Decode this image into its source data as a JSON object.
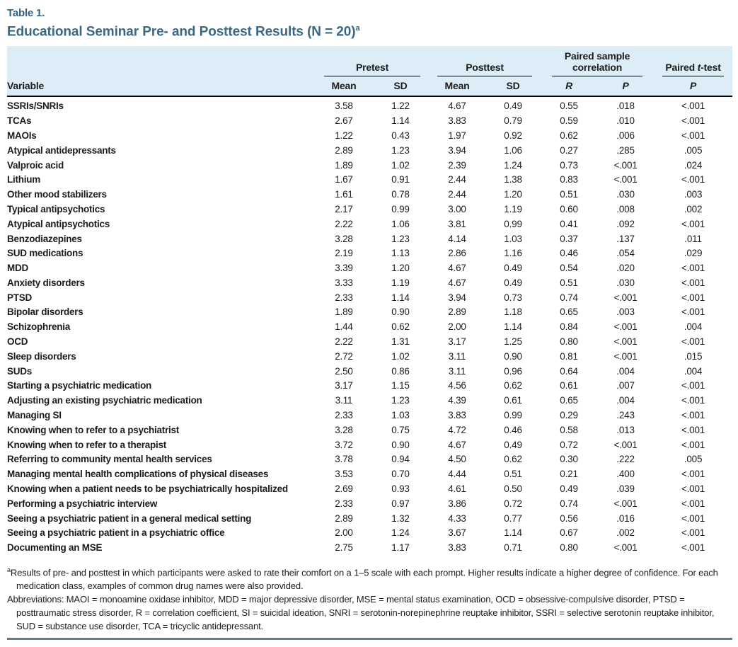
{
  "table_label": "Table 1.",
  "title": "Educational Seminar Pre- and Posttest Results (N = 20)",
  "title_superscript": "a",
  "colors": {
    "title_slate_blue": "#3a6883",
    "header_band_blue": "#dcedf7",
    "bottom_rule_slate": "#5b7e93",
    "body_text": "#1c1c1c"
  },
  "columns": {
    "variable": "Variable",
    "groups": [
      {
        "label": "Pretest",
        "sub": [
          "Mean",
          "SD"
        ]
      },
      {
        "label": "Posttest",
        "sub": [
          "Mean",
          "SD"
        ]
      },
      {
        "label": "Paired sample correlation",
        "sub": [
          "R",
          "P"
        ]
      },
      {
        "label_pre": "Paired ",
        "label_italic": "t",
        "label_post": "-test",
        "sub": [
          "P"
        ]
      }
    ]
  },
  "rows": [
    {
      "variable": "SSRIs/SNRIs",
      "values": [
        "3.58",
        "1.22",
        "4.67",
        "0.49",
        "0.55",
        ".018",
        "<.001"
      ]
    },
    {
      "variable": "TCAs",
      "values": [
        "2.67",
        "1.14",
        "3.83",
        "0.79",
        "0.59",
        ".010",
        "<.001"
      ]
    },
    {
      "variable": "MAOIs",
      "values": [
        "1.22",
        "0.43",
        "1.97",
        "0.92",
        "0.62",
        ".006",
        "<.001"
      ]
    },
    {
      "variable": "Atypical antidepressants",
      "values": [
        "2.89",
        "1.23",
        "3.94",
        "1.06",
        "0.27",
        ".285",
        ".005"
      ]
    },
    {
      "variable": "Valproic acid",
      "values": [
        "1.89",
        "1.02",
        "2.39",
        "1.24",
        "0.73",
        "<.001",
        ".024"
      ]
    },
    {
      "variable": "Lithium",
      "values": [
        "1.67",
        "0.91",
        "2.44",
        "1.38",
        "0.83",
        "<.001",
        "<.001"
      ]
    },
    {
      "variable": "Other mood stabilizers",
      "values": [
        "1.61",
        "0.78",
        "2.44",
        "1.20",
        "0.51",
        ".030",
        ".003"
      ]
    },
    {
      "variable": "Typical antipsychotics",
      "values": [
        "2.17",
        "0.99",
        "3.00",
        "1.19",
        "0.60",
        ".008",
        ".002"
      ]
    },
    {
      "variable": "Atypical antipsychotics",
      "values": [
        "2.22",
        "1.06",
        "3.81",
        "0.99",
        "0.41",
        ".092",
        "<.001"
      ]
    },
    {
      "variable": "Benzodiazepines",
      "values": [
        "3.28",
        "1.23",
        "4.14",
        "1.03",
        "0.37",
        ".137",
        ".011"
      ]
    },
    {
      "variable": "SUD medications",
      "values": [
        "2.19",
        "1.13",
        "2.86",
        "1.16",
        "0.46",
        ".054",
        ".029"
      ]
    },
    {
      "variable": "MDD",
      "values": [
        "3.39",
        "1.20",
        "4.67",
        "0.49",
        "0.54",
        ".020",
        "<.001"
      ]
    },
    {
      "variable": "Anxiety disorders",
      "values": [
        "3.33",
        "1.19",
        "4.67",
        "0.49",
        "0.51",
        ".030",
        "<.001"
      ]
    },
    {
      "variable": "PTSD",
      "values": [
        "2.33",
        "1.14",
        "3.94",
        "0.73",
        "0.74",
        "<.001",
        "<.001"
      ]
    },
    {
      "variable": "Bipolar disorders",
      "values": [
        "1.89",
        "0.90",
        "2.89",
        "1.18",
        "0.65",
        ".003",
        "<.001"
      ]
    },
    {
      "variable": "Schizophrenia",
      "values": [
        "1.44",
        "0.62",
        "2.00",
        "1.14",
        "0.84",
        "<.001",
        ".004"
      ]
    },
    {
      "variable": "OCD",
      "values": [
        "2.22",
        "1.31",
        "3.17",
        "1.25",
        "0.80",
        "<.001",
        "<.001"
      ]
    },
    {
      "variable": "Sleep disorders",
      "values": [
        "2.72",
        "1.02",
        "3.11",
        "0.90",
        "0.81",
        "<.001",
        ".015"
      ]
    },
    {
      "variable": "SUDs",
      "values": [
        "2.50",
        "0.86",
        "3.11",
        "0.96",
        "0.64",
        ".004",
        ".004"
      ]
    },
    {
      "variable": "Starting a psychiatric medication",
      "values": [
        "3.17",
        "1.15",
        "4.56",
        "0.62",
        "0.61",
        ".007",
        "<.001"
      ]
    },
    {
      "variable": "Adjusting an existing psychiatric medication",
      "values": [
        "3.11",
        "1.23",
        "4.39",
        "0.61",
        "0.65",
        ".004",
        "<.001"
      ]
    },
    {
      "variable": "Managing SI",
      "values": [
        "2.33",
        "1.03",
        "3.83",
        "0.99",
        "0.29",
        ".243",
        "<.001"
      ]
    },
    {
      "variable": "Knowing when to refer to a psychiatrist",
      "values": [
        "3.28",
        "0.75",
        "4.72",
        "0.46",
        "0.58",
        ".013",
        "<.001"
      ]
    },
    {
      "variable": "Knowing when to refer to a therapist",
      "values": [
        "3.72",
        "0.90",
        "4.67",
        "0.49",
        "0.72",
        "<.001",
        "<.001"
      ]
    },
    {
      "variable": "Referring to community mental health services",
      "values": [
        "3.78",
        "0.94",
        "4.50",
        "0.62",
        "0.30",
        ".222",
        ".005"
      ]
    },
    {
      "variable": "Managing mental health complications of physical diseases",
      "values": [
        "3.53",
        "0.70",
        "4.44",
        "0.51",
        "0.21",
        ".400",
        "<.001"
      ]
    },
    {
      "variable": "Knowing when a patient needs to be psychiatrically hospitalized",
      "values": [
        "2.69",
        "0.93",
        "4.61",
        "0.50",
        "0.49",
        ".039",
        "<.001"
      ]
    },
    {
      "variable": "Performing a psychiatric interview",
      "values": [
        "2.33",
        "0.97",
        "3.86",
        "0.72",
        "0.74",
        "<.001",
        "<.001"
      ]
    },
    {
      "variable": "Seeing a psychiatric patient in a general medical setting",
      "values": [
        "2.89",
        "1.32",
        "4.33",
        "0.77",
        "0.56",
        ".016",
        "<.001"
      ]
    },
    {
      "variable": "Seeing a psychiatric patient in a psychiatric office",
      "values": [
        "2.00",
        "1.24",
        "3.67",
        "1.14",
        "0.67",
        ".002",
        "<.001"
      ]
    },
    {
      "variable": "Documenting an MSE",
      "values": [
        "2.75",
        "1.17",
        "3.83",
        "0.71",
        "0.80",
        "<.001",
        "<.001"
      ]
    }
  ],
  "footnotes": {
    "marker": "a",
    "results": "Results of pre- and posttest in which participants were asked to rate their comfort on a 1–5 scale with each prompt. Higher results indicate a higher degree of confidence. For each medication class, examples of common drug names were also provided.",
    "abbreviations": "Abbreviations: MAOI = monoamine oxidase inhibitor, MDD = major depressive disorder, MSE = mental status examination, OCD = obsessive-compulsive disorder, PTSD = posttraumatic stress disorder, R = correlation coefficient, SI = suicidal ideation, SNRI = serotonin-norepinephrine reuptake inhibitor, SSRI = selective serotonin reuptake inhibitor, SUD = substance use disorder, TCA = tricyclic antidepressant."
  }
}
